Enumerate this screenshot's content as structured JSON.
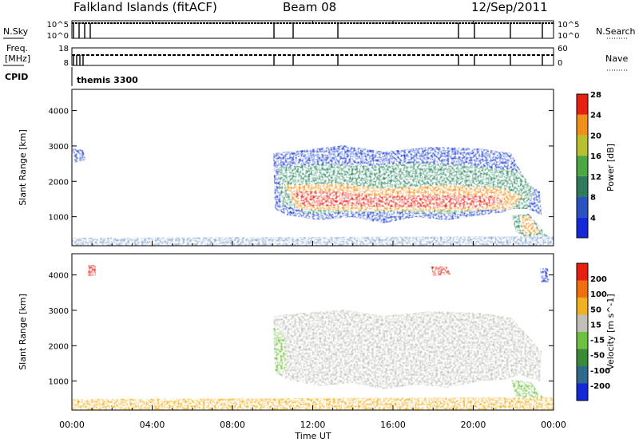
{
  "header": {
    "station": "Falkland Islands (fitACF)",
    "beam": "Beam 08",
    "date": "12/Sep/2011"
  },
  "noise_panel": {
    "left_label": "N.Sky",
    "right_label": "N.Search",
    "left_ticks": [
      "10^5",
      "10^0"
    ],
    "right_ticks": [
      "10^5",
      "10^0"
    ]
  },
  "freq_panel": {
    "left_label_line1": "Freq.",
    "left_label_line2": "[MHz]",
    "right_label": "Nave",
    "left_ticks": [
      "18",
      "8"
    ],
    "right_ticks": [
      "60",
      "0"
    ]
  },
  "cpid": {
    "label": "CPID",
    "mode": "themis 3300"
  },
  "chart_data": [
    {
      "type": "heatmap",
      "panel": "power",
      "ylabel": "Slant Range [km]",
      "ylim": [
        180,
        4600
      ],
      "yticks": [
        1000,
        2000,
        3000,
        4000
      ],
      "colorbar_label": "Power [dB]",
      "colorbar_ticks": [
        "4",
        "8",
        "12",
        "16",
        "20",
        "24",
        "28"
      ],
      "colorbar_colors": [
        "#1428d8",
        "#2a52c0",
        "#2e7a5a",
        "#4aa840",
        "#b8c030",
        "#f09018",
        "#e82010"
      ]
    },
    {
      "type": "heatmap",
      "panel": "velocity",
      "ylabel": "Slant Range [km]",
      "ylim": [
        180,
        4600
      ],
      "yticks": [
        1000,
        2000,
        3000,
        4000
      ],
      "colorbar_label": "Velocity [m s^-1]",
      "colorbar_ticks": [
        "200",
        "100",
        "50",
        "15",
        "-15",
        "-50",
        "-100",
        "-200"
      ],
      "colorbar_colors": [
        "#1428d8",
        "#2e6a8a",
        "#3a8a3a",
        "#70c040",
        "#c0c0b8",
        "#f0b020",
        "#f07010",
        "#e82010"
      ]
    }
  ],
  "xaxis": {
    "label": "Time UT",
    "ticks": [
      "00:00",
      "04:00",
      "08:00",
      "12:00",
      "16:00",
      "20:00",
      "00:00"
    ]
  }
}
